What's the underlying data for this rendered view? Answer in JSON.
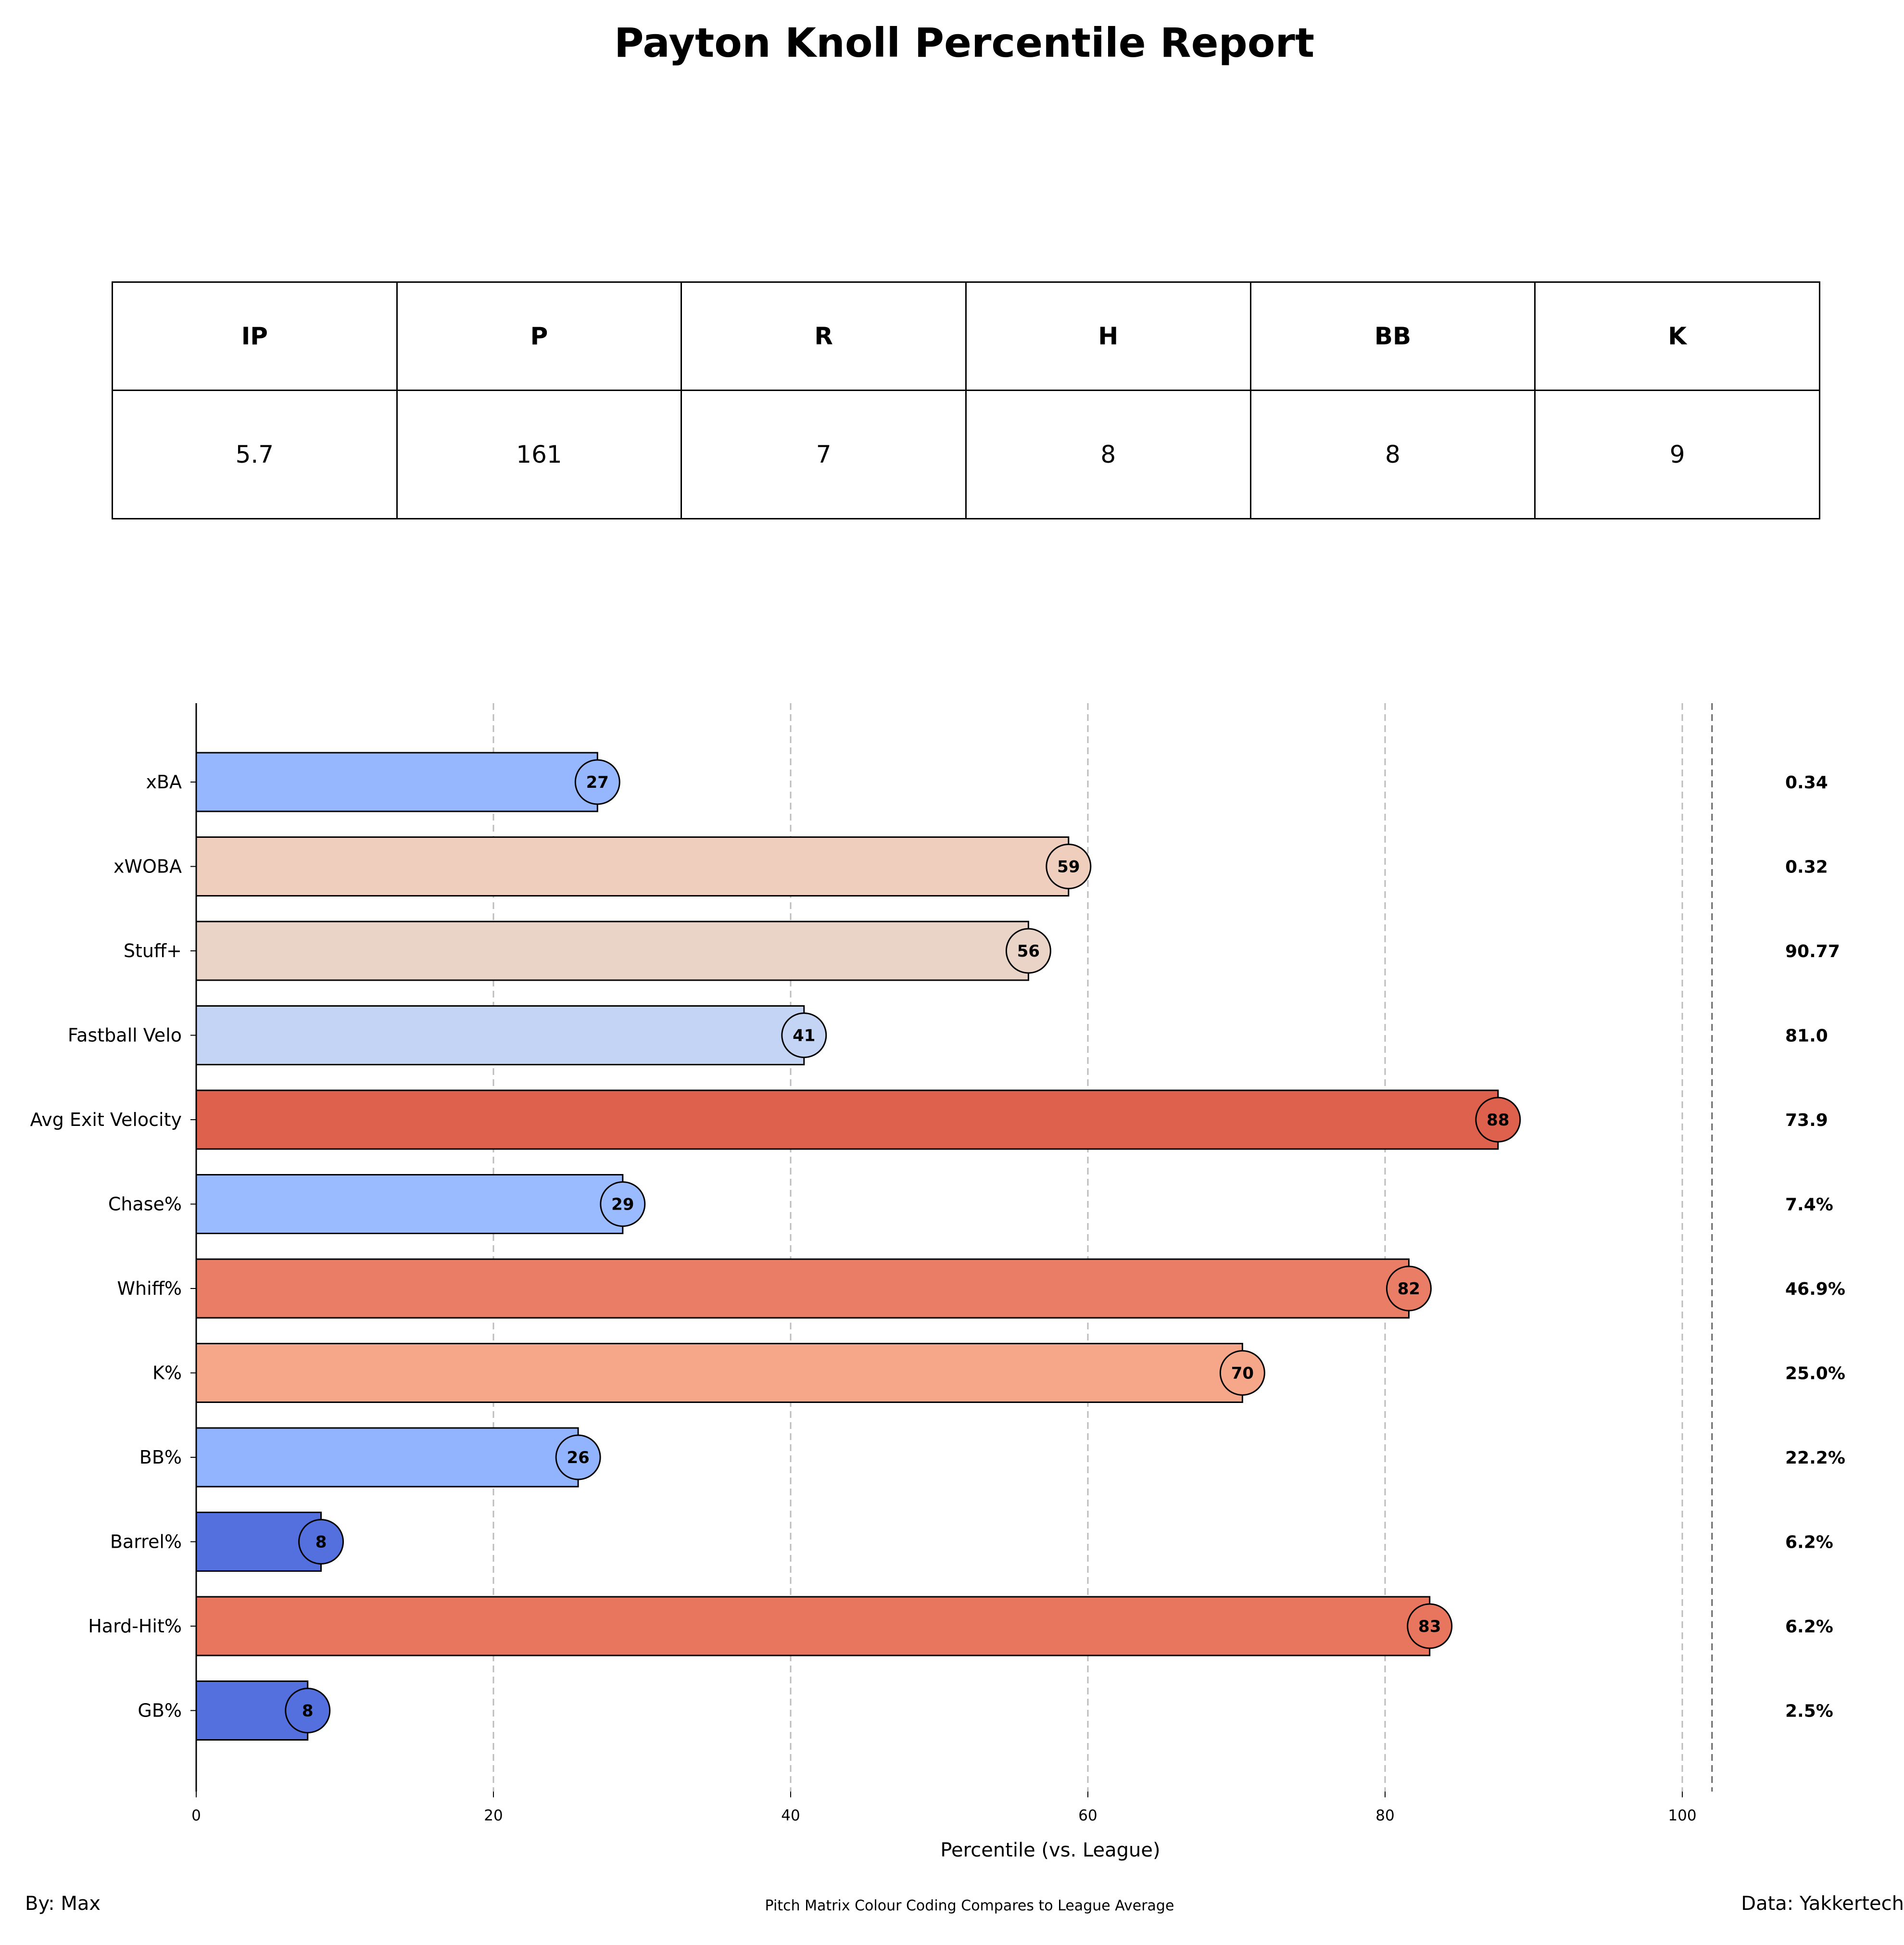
{
  "title": "Payton Knoll Percentile Report",
  "stats_table": {
    "headers": [
      "IP",
      "P",
      "R",
      "H",
      "BB",
      "K"
    ],
    "values": [
      "5.7",
      "161",
      "7",
      "8",
      "8",
      "9"
    ]
  },
  "chart_data": {
    "type": "bar",
    "orientation": "horizontal",
    "title": "Payton Knoll Percentile Report",
    "xlabel": "Percentile (vs. League)",
    "ylabel": "",
    "xlim": [
      0,
      102
    ],
    "xticks": [
      0,
      20,
      40,
      60,
      80,
      100
    ],
    "grid": "vertical dashed",
    "categories": [
      "xBA",
      "xWOBA",
      "Stuff+",
      "Fastball Velo",
      "Avg Exit Velocity",
      "Chase%",
      "Whiff%",
      "K%",
      "BB%",
      "Barrel%",
      "Hard-Hit%",
      "GB%"
    ],
    "values": [
      27,
      58.7,
      56,
      40.9,
      87.6,
      28.7,
      81.6,
      70.4,
      25.7,
      8.4,
      83,
      7.5
    ],
    "labels": [
      "27",
      "59",
      "56",
      "41",
      "88",
      "29",
      "82",
      "70",
      "26",
      "8",
      "83",
      "8"
    ],
    "raw_values": [
      "0.34",
      "0.32",
      "90.77",
      "81.0",
      "73.9",
      "7.4%",
      "46.9%",
      "25.0%",
      "22.2%",
      "6.2%",
      "6.2%",
      "2.5%"
    ],
    "colors": [
      "#96b7fe",
      "#efcebd",
      "#ead4c8",
      "#c3d4f4",
      "#de614d",
      "#9abbff",
      "#ea7d66",
      "#f6a78a",
      "#92b4fe",
      "#5470de",
      "#e8765e",
      "#5470de"
    ]
  },
  "footer": {
    "left": "By: Max",
    "center": "Pitch Matrix Colour Coding Compares to League Average",
    "right": "Data: Yakkertech"
  }
}
